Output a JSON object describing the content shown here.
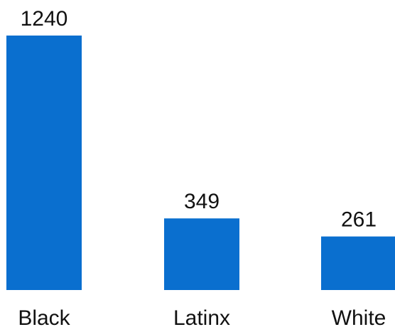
{
  "chart_data": {
    "type": "bar",
    "categories": [
      "Black",
      "Latinx",
      "White"
    ],
    "values": [
      1240,
      349,
      261
    ],
    "data_labels": [
      "1240",
      "349",
      "261"
    ],
    "title": "",
    "xlabel": "",
    "ylabel": "",
    "ylim": [
      0,
      1240
    ],
    "grid": false,
    "legend": "none",
    "bar_color": "#0a6fcf"
  }
}
